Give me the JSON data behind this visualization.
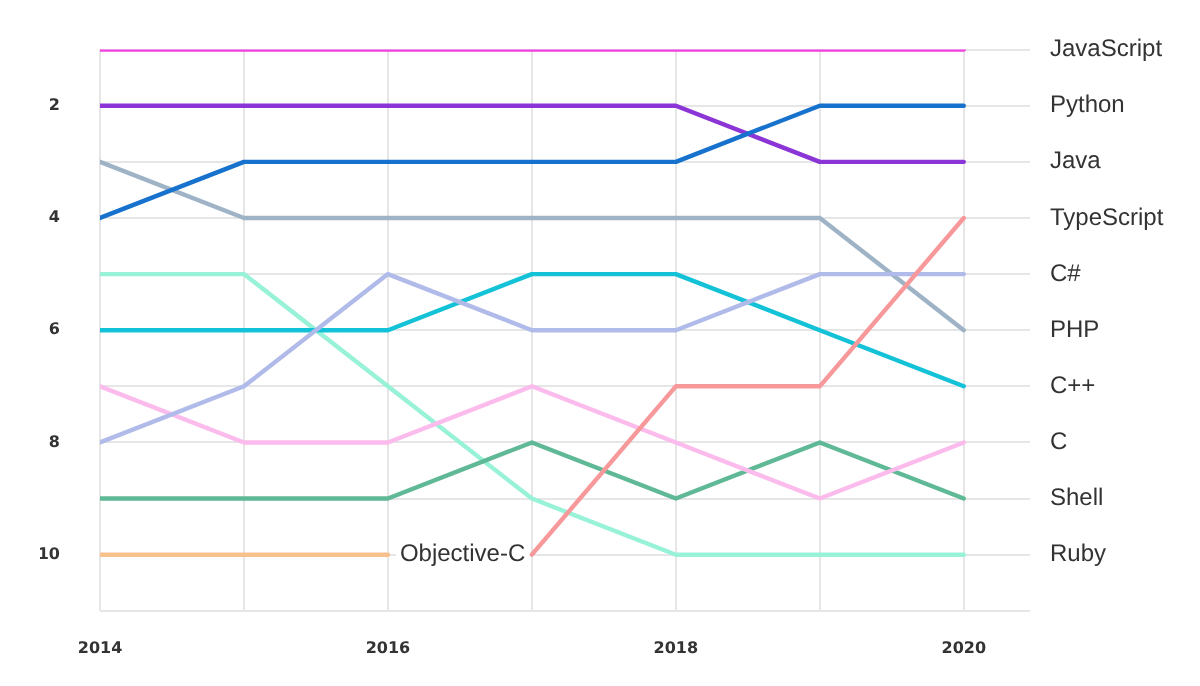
{
  "chart_data": {
    "type": "line",
    "x": [
      2014,
      2015,
      2016,
      2017,
      2018,
      2019,
      2020
    ],
    "series": [
      {
        "name": "JavaScript",
        "color": "#f23fe0",
        "values": [
          1,
          1,
          1,
          1,
          1,
          1,
          1
        ]
      },
      {
        "name": "Python",
        "color": "#1672cc",
        "values": [
          4,
          3,
          3,
          3,
          3,
          2,
          2
        ]
      },
      {
        "name": "Java",
        "color": "#8c35d6",
        "values": [
          2,
          2,
          2,
          2,
          2,
          3,
          3
        ]
      },
      {
        "name": "TypeScript",
        "color": "#f7989a",
        "values": [
          null,
          null,
          null,
          10,
          7,
          7,
          4
        ]
      },
      {
        "name": "C#",
        "color": "#b1bbea",
        "values": [
          8,
          7,
          5,
          6,
          6,
          5,
          5
        ]
      },
      {
        "name": "PHP",
        "color": "#9fb3c6",
        "values": [
          3,
          4,
          4,
          4,
          4,
          4,
          6
        ]
      },
      {
        "name": "C++",
        "color": "#14c2d8",
        "values": [
          6,
          6,
          6,
          5,
          5,
          6,
          7
        ]
      },
      {
        "name": "C",
        "color": "#fbbbec",
        "values": [
          7,
          8,
          8,
          7,
          8,
          9,
          8
        ]
      },
      {
        "name": "Shell",
        "color": "#5fb996",
        "values": [
          9,
          9,
          9,
          8,
          9,
          8,
          9
        ]
      },
      {
        "name": "Ruby",
        "color": "#98f2d8",
        "values": [
          5,
          5,
          7,
          9,
          10,
          10,
          10
        ]
      },
      {
        "name": "Objective-C",
        "color": "#f8c08c",
        "values": [
          10,
          10,
          10,
          null,
          null,
          null,
          null
        ]
      }
    ],
    "xlim": [
      2014,
      2020.46
    ],
    "xticks": [
      2014,
      {
        "value": 2015,
        "label": null
      },
      2016,
      {
        "value": 2017,
        "label": null
      },
      2018,
      {
        "value": 2019,
        "label": null
      },
      2020
    ],
    "ylim": [
      11,
      1
    ],
    "yticks": [
      {
        "value": 1,
        "label": null
      },
      2,
      {
        "value": 3,
        "label": null
      },
      4,
      {
        "value": 5,
        "label": null
      },
      6,
      {
        "value": 7,
        "label": null
      },
      8,
      {
        "value": 9,
        "label": null
      },
      10,
      {
        "value": 11,
        "label": null
      }
    ],
    "grid": true,
    "legend": false,
    "marker": "none",
    "line_style": "solid"
  }
}
